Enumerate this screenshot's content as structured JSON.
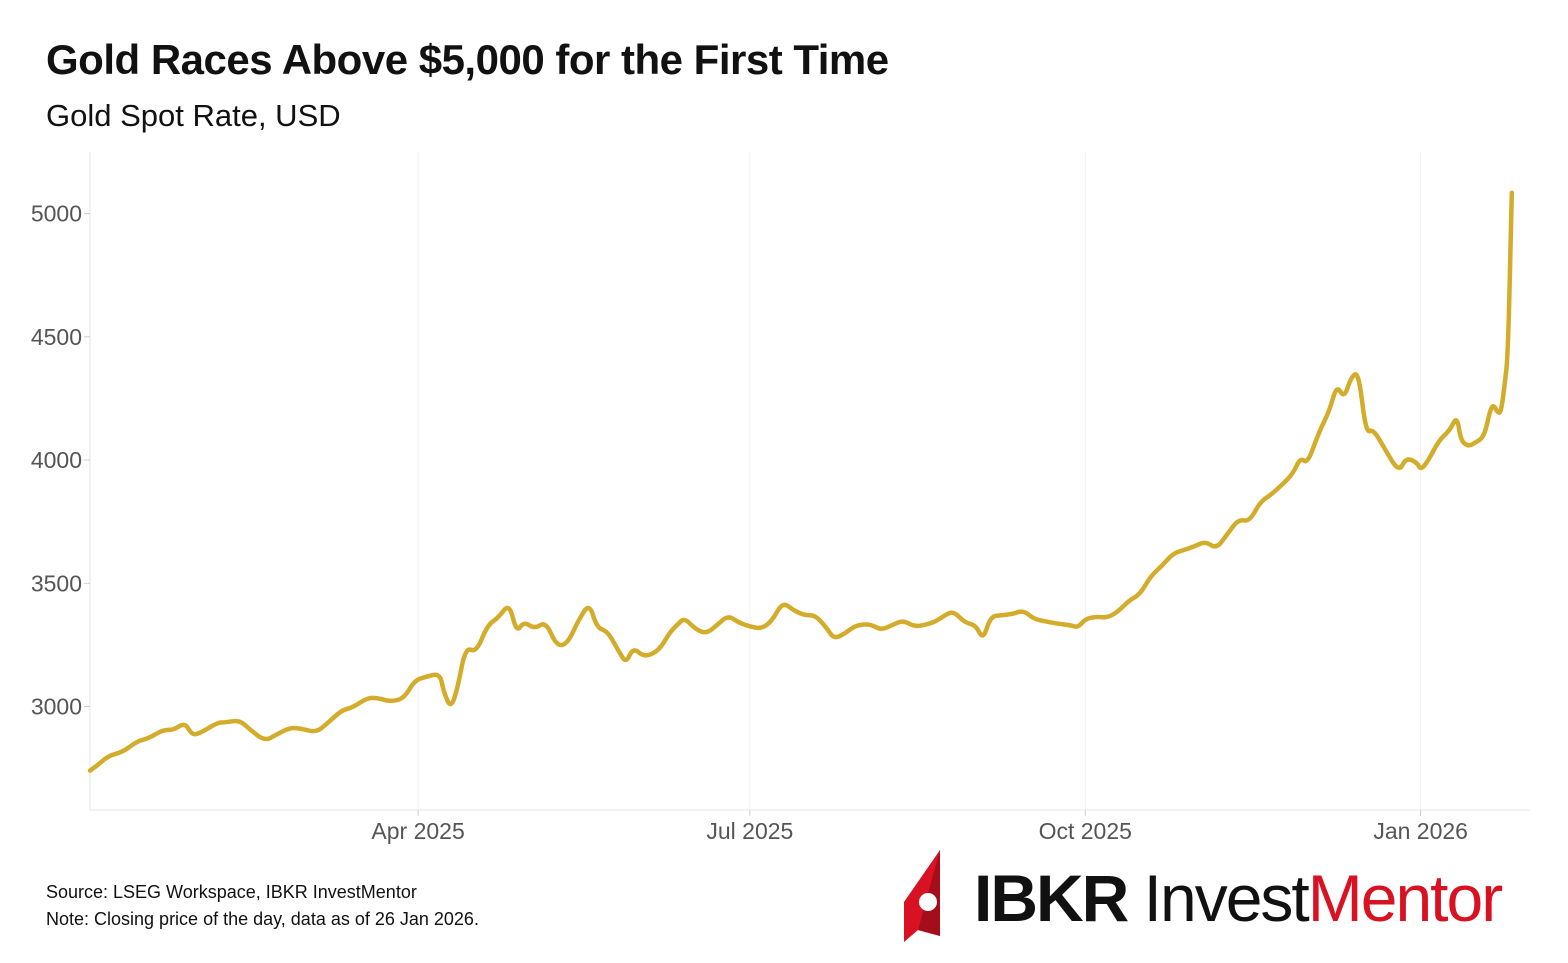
{
  "title": "Gold Races Above $5,000 for the First Time",
  "subtitle": "Gold Spot Rate, USD",
  "footnotes": {
    "source": "Source: LSEG Workspace, IBKR InvestMentor",
    "note": "Note: Closing price of the day, data as of 26 Jan 2026."
  },
  "brand": {
    "part1": "IBKR ",
    "part2": "Invest",
    "part3": "Mentor",
    "colors": {
      "dark": "#111111",
      "red": "#d81222"
    }
  },
  "chart_data": {
    "type": "line",
    "title": "Gold Races Above $5,000 for the First Time",
    "subtitle": "Gold Spot Rate, USD",
    "xlabel": "",
    "ylabel": "",
    "xlim": [
      "2025-01-01",
      "2026-01-31"
    ],
    "ylim": [
      2580,
      5250
    ],
    "yticks": [
      3000,
      3500,
      4000,
      4500,
      5000
    ],
    "xticks": [
      {
        "date": "2025-04-01",
        "label": "Apr 2025"
      },
      {
        "date": "2025-07-01",
        "label": "Jul 2025"
      },
      {
        "date": "2025-10-01",
        "label": "Oct 2025"
      },
      {
        "date": "2026-01-01",
        "label": "Jan 2026"
      }
    ],
    "grid": "vertical",
    "line_color": "#d4ac2b",
    "series": [
      {
        "values": [
          [
            "2025-01-01",
            2740
          ],
          [
            "2025-01-03",
            2760
          ],
          [
            "2025-01-06",
            2800
          ],
          [
            "2025-01-10",
            2815
          ],
          [
            "2025-01-14",
            2860
          ],
          [
            "2025-01-17",
            2870
          ],
          [
            "2025-01-21",
            2905
          ],
          [
            "2025-01-24",
            2905
          ],
          [
            "2025-01-27",
            2935
          ],
          [
            "2025-01-29",
            2885
          ],
          [
            "2025-01-31",
            2890
          ],
          [
            "2025-02-05",
            2935
          ],
          [
            "2025-02-07",
            2935
          ],
          [
            "2025-02-11",
            2945
          ],
          [
            "2025-02-14",
            2905
          ],
          [
            "2025-02-18",
            2860
          ],
          [
            "2025-02-21",
            2885
          ],
          [
            "2025-02-25",
            2915
          ],
          [
            "2025-02-28",
            2910
          ],
          [
            "2025-03-04",
            2895
          ],
          [
            "2025-03-07",
            2930
          ],
          [
            "2025-03-11",
            2985
          ],
          [
            "2025-03-14",
            2995
          ],
          [
            "2025-03-18",
            3035
          ],
          [
            "2025-03-21",
            3035
          ],
          [
            "2025-03-24",
            3020
          ],
          [
            "2025-03-28",
            3030
          ],
          [
            "2025-03-31",
            3105
          ],
          [
            "2025-04-03",
            3120
          ],
          [
            "2025-04-07",
            3135
          ],
          [
            "2025-04-08",
            3060
          ],
          [
            "2025-04-10",
            2990
          ],
          [
            "2025-04-12",
            3085
          ],
          [
            "2025-04-14",
            3240
          ],
          [
            "2025-04-17",
            3220
          ],
          [
            "2025-04-20",
            3330
          ],
          [
            "2025-04-23",
            3360
          ],
          [
            "2025-04-26",
            3420
          ],
          [
            "2025-04-28",
            3300
          ],
          [
            "2025-04-30",
            3345
          ],
          [
            "2025-05-03",
            3315
          ],
          [
            "2025-05-06",
            3345
          ],
          [
            "2025-05-09",
            3245
          ],
          [
            "2025-05-12",
            3255
          ],
          [
            "2025-05-15",
            3350
          ],
          [
            "2025-05-18",
            3420
          ],
          [
            "2025-05-20",
            3320
          ],
          [
            "2025-05-23",
            3305
          ],
          [
            "2025-05-26",
            3225
          ],
          [
            "2025-05-28",
            3175
          ],
          [
            "2025-05-30",
            3240
          ],
          [
            "2025-06-02",
            3200
          ],
          [
            "2025-06-06",
            3225
          ],
          [
            "2025-06-09",
            3300
          ],
          [
            "2025-06-11",
            3330
          ],
          [
            "2025-06-13",
            3360
          ],
          [
            "2025-06-16",
            3315
          ],
          [
            "2025-06-19",
            3295
          ],
          [
            "2025-06-22",
            3330
          ],
          [
            "2025-06-25",
            3370
          ],
          [
            "2025-06-28",
            3340
          ],
          [
            "2025-07-01",
            3325
          ],
          [
            "2025-07-04",
            3315
          ],
          [
            "2025-07-07",
            3345
          ],
          [
            "2025-07-10",
            3425
          ],
          [
            "2025-07-13",
            3390
          ],
          [
            "2025-07-16",
            3370
          ],
          [
            "2025-07-19",
            3370
          ],
          [
            "2025-07-22",
            3320
          ],
          [
            "2025-07-24",
            3275
          ],
          [
            "2025-07-27",
            3295
          ],
          [
            "2025-07-30",
            3330
          ],
          [
            "2025-08-03",
            3335
          ],
          [
            "2025-08-06",
            3310
          ],
          [
            "2025-08-09",
            3330
          ],
          [
            "2025-08-12",
            3350
          ],
          [
            "2025-08-15",
            3325
          ],
          [
            "2025-08-18",
            3330
          ],
          [
            "2025-08-21",
            3345
          ],
          [
            "2025-08-24",
            3375
          ],
          [
            "2025-08-26",
            3385
          ],
          [
            "2025-08-29",
            3340
          ],
          [
            "2025-09-01",
            3330
          ],
          [
            "2025-09-03",
            3270
          ],
          [
            "2025-09-05",
            3365
          ],
          [
            "2025-09-08",
            3370
          ],
          [
            "2025-09-11",
            3375
          ],
          [
            "2025-09-14",
            3390
          ],
          [
            "2025-09-17",
            3355
          ],
          [
            "2025-09-20",
            3345
          ],
          [
            "2025-09-24",
            3335
          ],
          [
            "2025-09-27",
            3330
          ],
          [
            "2025-09-29",
            3320
          ],
          [
            "2025-10-01",
            3355
          ],
          [
            "2025-10-04",
            3365
          ],
          [
            "2025-10-07",
            3360
          ],
          [
            "2025-10-10",
            3385
          ],
          [
            "2025-10-13",
            3430
          ],
          [
            "2025-10-16",
            3455
          ],
          [
            "2025-10-19",
            3530
          ],
          [
            "2025-10-22",
            3570
          ],
          [
            "2025-10-25",
            3620
          ],
          [
            "2025-10-28",
            3635
          ],
          [
            "2025-10-31",
            3650
          ],
          [
            "2025-11-03",
            3670
          ],
          [
            "2025-11-06",
            3640
          ],
          [
            "2025-11-09",
            3700
          ],
          [
            "2025-11-12",
            3760
          ],
          [
            "2025-11-15",
            3750
          ],
          [
            "2025-11-18",
            3830
          ],
          [
            "2025-11-21",
            3860
          ],
          [
            "2025-11-24",
            3900
          ],
          [
            "2025-11-27",
            3945
          ],
          [
            "2025-11-29",
            4010
          ],
          [
            "2025-12-01",
            3985
          ],
          [
            "2025-12-04",
            4110
          ],
          [
            "2025-12-07",
            4200
          ],
          [
            "2025-12-09",
            4305
          ],
          [
            "2025-12-11",
            4250
          ],
          [
            "2025-12-13",
            4340
          ],
          [
            "2025-12-15",
            4355
          ],
          [
            "2025-12-17",
            4110
          ],
          [
            "2025-12-19",
            4125
          ],
          [
            "2025-12-22",
            4050
          ],
          [
            "2025-12-26",
            3950
          ],
          [
            "2025-12-28",
            4010
          ],
          [
            "2025-12-31",
            3990
          ],
          [
            "2026-01-01",
            3960
          ],
          [
            "2026-01-03",
            3995
          ],
          [
            "2026-01-06",
            4080
          ],
          [
            "2026-01-09",
            4120
          ],
          [
            "2026-01-11",
            4180
          ],
          [
            "2026-01-12",
            4080
          ],
          [
            "2026-01-14",
            4055
          ],
          [
            "2026-01-16",
            4070
          ],
          [
            "2026-01-18",
            4090
          ],
          [
            "2026-01-19",
            4130
          ],
          [
            "2026-01-20",
            4200
          ],
          [
            "2026-01-21",
            4225
          ],
          [
            "2026-01-22",
            4195
          ],
          [
            "2026-01-23",
            4190
          ],
          [
            "2026-01-24",
            4300
          ],
          [
            "2026-01-25",
            4430
          ],
          [
            "2026-01-26",
            5085
          ]
        ]
      }
    ]
  }
}
